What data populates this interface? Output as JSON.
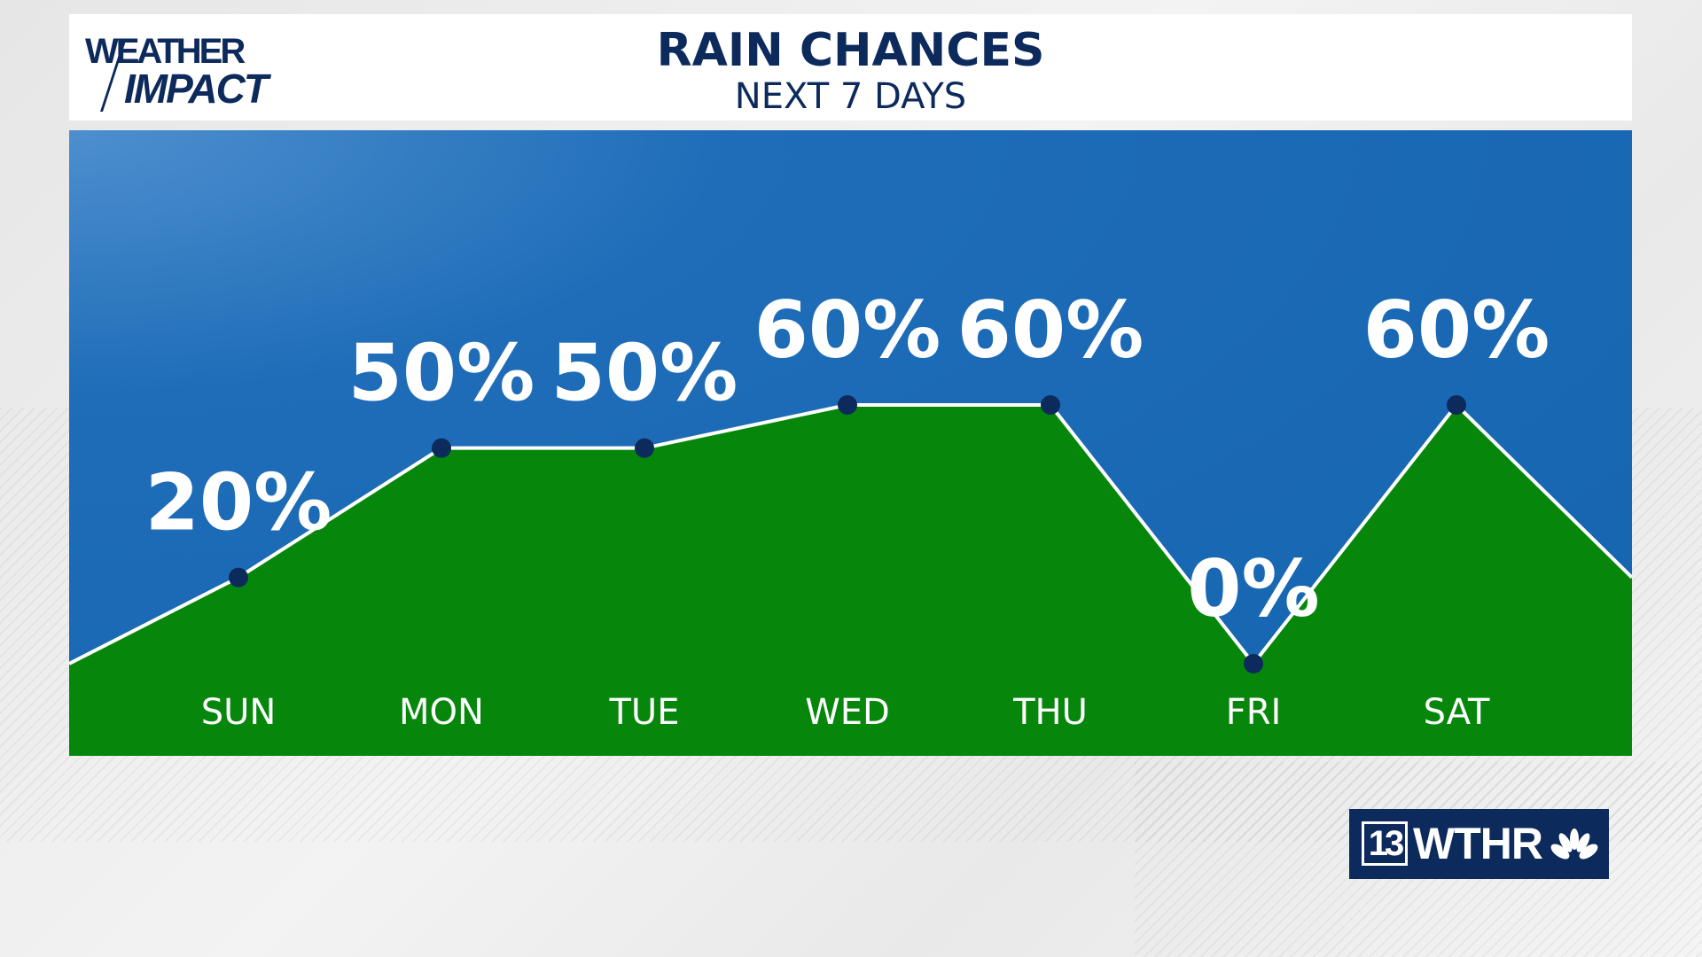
{
  "header": {
    "logo_line1": "WEATHER",
    "logo_line2": "IMPACT",
    "title": "RAIN CHANCES",
    "subtitle": "NEXT 7 DAYS"
  },
  "station": {
    "channel": "13",
    "call_letters": "WTHR",
    "network_icon": "nbc-peacock-icon"
  },
  "colors": {
    "sky_blue": "#1a66b0",
    "area_green": "#06870c",
    "navy": "#0d2a5c",
    "line_white": "#ffffff"
  },
  "chart_data": {
    "type": "area",
    "categories": [
      "SUN",
      "MON",
      "TUE",
      "WED",
      "THU",
      "FRI",
      "SAT"
    ],
    "series": [
      {
        "values": [
          20,
          50,
          50,
          60,
          60,
          0,
          60
        ]
      }
    ],
    "value_labels": [
      "20%",
      "50%",
      "50%",
      "60%",
      "60%",
      "0%",
      "60%"
    ],
    "line_start_value": 0,
    "line_end_value": 20,
    "ylim": [
      0,
      100
    ],
    "grid": false,
    "legend": "none"
  }
}
